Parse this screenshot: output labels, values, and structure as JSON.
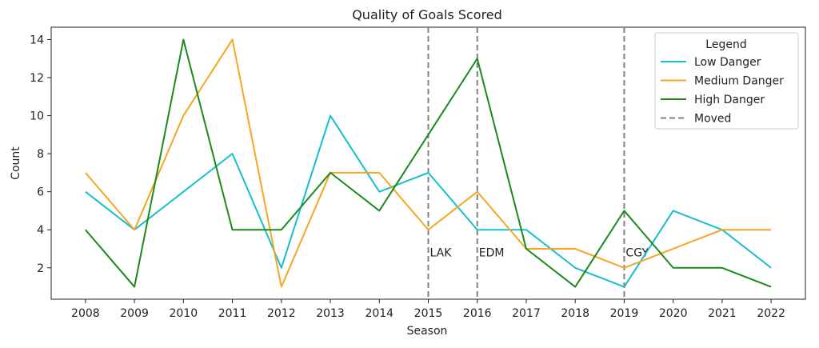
{
  "chart_data": {
    "type": "line",
    "title": "Quality of Goals Scored",
    "xlabel": "Season",
    "ylabel": "Count",
    "x": [
      2008,
      2009,
      2010,
      2011,
      2012,
      2013,
      2014,
      2015,
      2016,
      2017,
      2018,
      2019,
      2020,
      2021,
      2022
    ],
    "ylim": [
      0.35,
      14.65
    ],
    "yticks": [
      2,
      4,
      6,
      8,
      10,
      12,
      14
    ],
    "grid": false,
    "series": [
      {
        "name": "Low Danger",
        "color": "#17becf",
        "values": [
          6,
          4,
          6,
          8,
          2,
          10,
          6,
          7,
          4,
          4,
          2,
          1,
          5,
          4,
          2
        ]
      },
      {
        "name": "Medium Danger",
        "color": "#f5a623",
        "values": [
          7,
          4,
          10,
          14,
          1,
          7,
          7,
          4,
          6,
          3,
          3,
          2,
          3,
          4,
          4
        ]
      },
      {
        "name": "High Danger",
        "color": "#1a8a1a",
        "values": [
          4,
          1,
          14,
          4,
          4,
          7,
          5,
          9,
          13,
          3,
          1,
          5,
          2,
          2,
          1
        ]
      }
    ],
    "moves": [
      {
        "season": 2015,
        "label": "LAK"
      },
      {
        "season": 2016,
        "label": "EDM"
      },
      {
        "season": 2019,
        "label": "CGY"
      }
    ],
    "moved_color": "#808080",
    "legend": {
      "title": "Legend",
      "placement": "top-right",
      "moved_label": "Moved"
    }
  }
}
